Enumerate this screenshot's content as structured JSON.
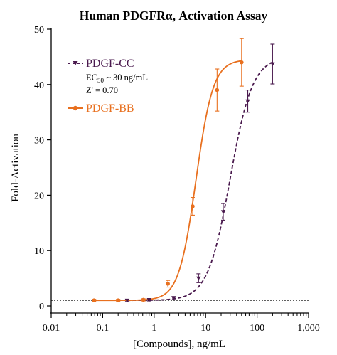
{
  "chart_data": {
    "type": "scatter",
    "title": "Human PDGFRα, Activation Assay",
    "xlabel": "[Compounds], ng/mL",
    "ylabel": "Fold-Activation",
    "xscale": "log",
    "xlim": [
      0.01,
      1000
    ],
    "ylim": [
      0,
      50
    ],
    "x_ticks": [
      0.01,
      0.1,
      1,
      10,
      100,
      1000
    ],
    "x_tick_labels": [
      "0.01",
      "0.1",
      "1",
      "10",
      "100",
      "1,000"
    ],
    "y_ticks": [
      0,
      10,
      20,
      30,
      40,
      50
    ],
    "y_tick_labels": [
      "0",
      "10",
      "20",
      "30",
      "40",
      "50"
    ],
    "grid": false,
    "legend_position": "top-left",
    "baseline": 1,
    "series": [
      {
        "name": "PDGF-CC",
        "color": "#4a1a4e",
        "line_style": "dashed",
        "marker": "triangle-down",
        "fit": {
          "bottom": 1,
          "top": 45,
          "ec50": 30,
          "hill": 2.0
        },
        "points": [
          {
            "x": 0.3,
            "y": 1.0,
            "err": 0.2
          },
          {
            "x": 0.8,
            "y": 1.1,
            "err": 0.2
          },
          {
            "x": 2.4,
            "y": 1.4,
            "err": 0.3
          },
          {
            "x": 7.3,
            "y": 5.0,
            "err": 0.8
          },
          {
            "x": 22,
            "y": 17.0,
            "err": 1.5
          },
          {
            "x": 66,
            "y": 37.0,
            "err": 2.0
          },
          {
            "x": 200,
            "y": 43.7,
            "err": 3.6
          }
        ]
      },
      {
        "name": "PDGF-BB",
        "color": "#e8701f",
        "line_style": "solid",
        "marker": "circle",
        "fit": {
          "bottom": 1,
          "top": 44.5,
          "ec50": 6.5,
          "hill": 2.6
        },
        "points": [
          {
            "x": 0.068,
            "y": 1.0,
            "err": 0.2
          },
          {
            "x": 0.2,
            "y": 1.0,
            "err": 0.2
          },
          {
            "x": 0.62,
            "y": 1.1,
            "err": 0.2
          },
          {
            "x": 1.85,
            "y": 4.0,
            "err": 0.6
          },
          {
            "x": 5.6,
            "y": 18.0,
            "err": 1.6
          },
          {
            "x": 16.7,
            "y": 39.0,
            "err": 3.8
          },
          {
            "x": 50,
            "y": 44.0,
            "err": 4.3
          }
        ]
      }
    ],
    "annotations": {
      "ec50_prefix": "EC",
      "ec50_subscript": "50",
      "ec50_value": " ~ 30 ng/mL",
      "z_prime": "Z' = 0.70"
    }
  }
}
